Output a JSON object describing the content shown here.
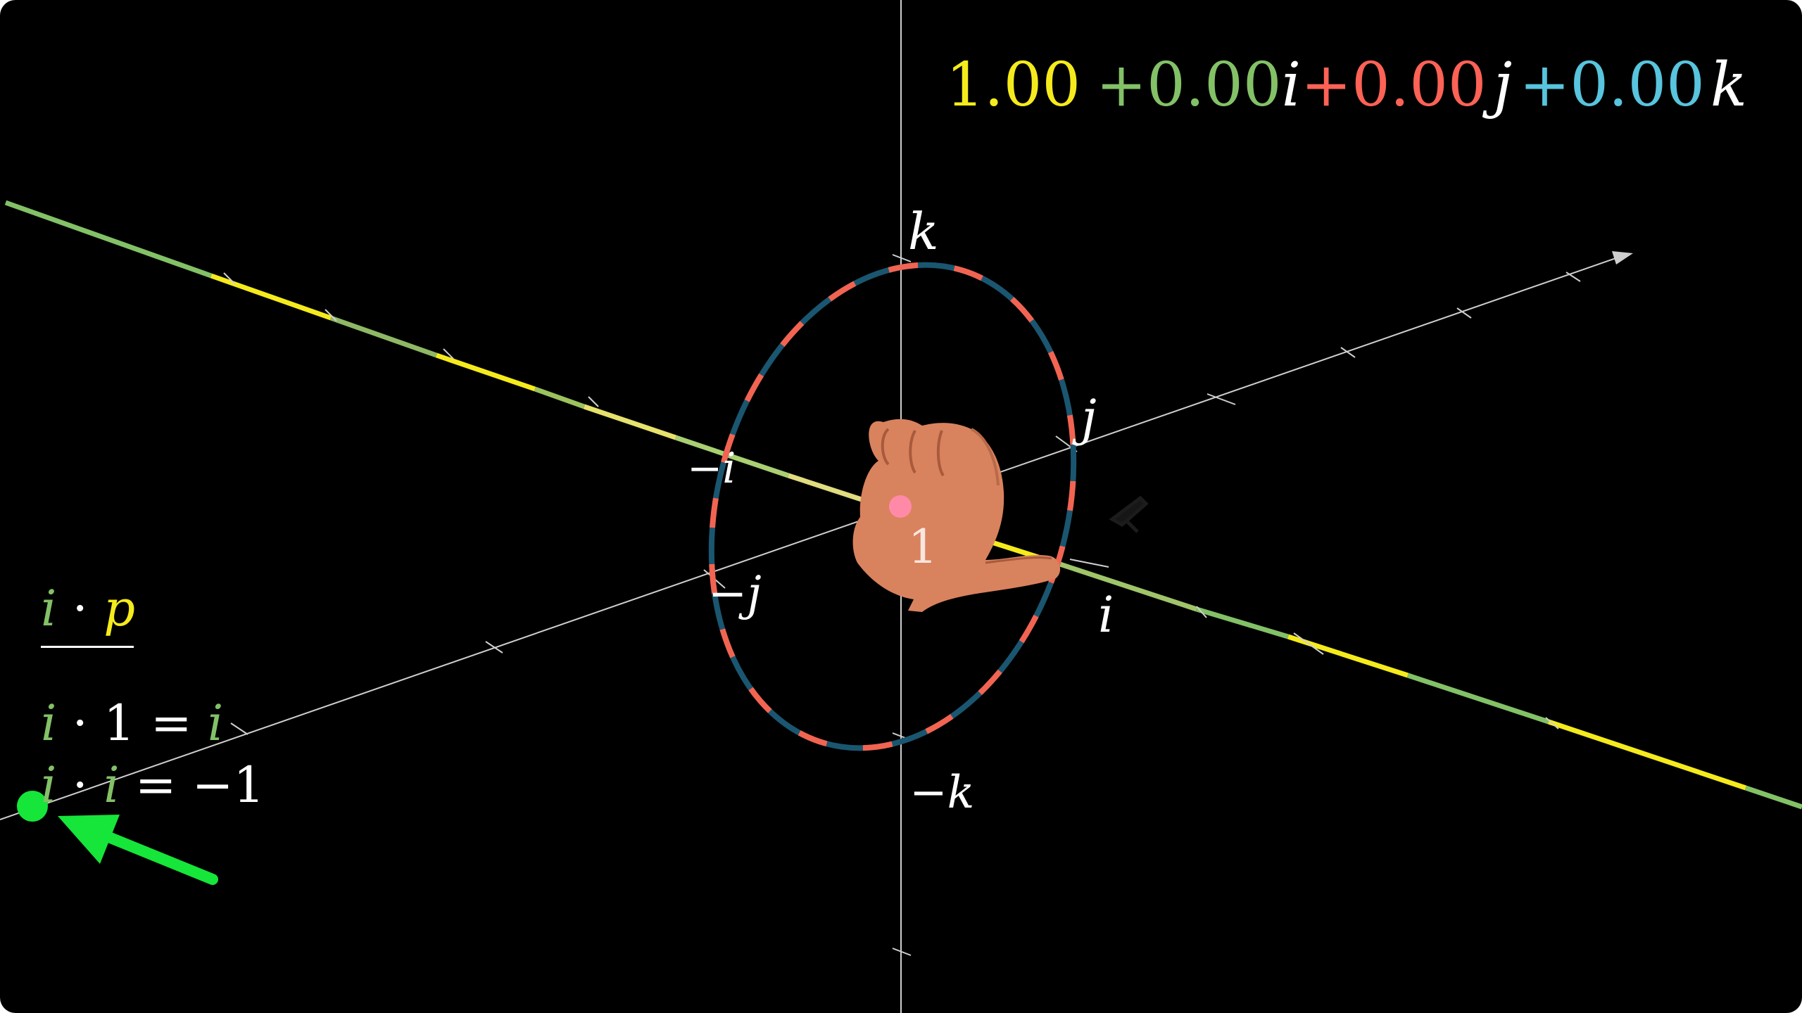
{
  "colors": {
    "background": "#000000",
    "axis": "#cfcfcf",
    "real_yellow": "#f5eb1c",
    "i_green": "#83c167",
    "j_red": "#fc6255",
    "k_blue": "#58c4dd",
    "circle_red": "#f26451",
    "circle_blue": "#1a5670",
    "point_pink": "#ff8aa8",
    "marker_green": "#16e53a",
    "white": "#ffffff"
  },
  "readout": {
    "real": "1.00",
    "i_coef": "+0.00",
    "i_unit": "i",
    "j_coef": "+0.00",
    "j_unit": "j",
    "k_coef": "+0.00",
    "k_unit": "k"
  },
  "axis_labels": {
    "k_pos": "k",
    "k_neg": "−k",
    "j_pos": "j",
    "j_neg": "−j",
    "i_pos": "i",
    "i_neg": "−i",
    "one": "1"
  },
  "equations": {
    "header_left": "i",
    "header_dot": "·",
    "header_right": "p",
    "eq1_left": "i",
    "eq1_rest": "· 1 = ",
    "eq1_right": "i",
    "eq2_left": "i",
    "eq2_dot": "·",
    "eq2_mid": "i",
    "eq2_rest": " = −1"
  },
  "icons": {
    "hand": "left-hand-thumb-icon",
    "arrow": "green-arrow-icon",
    "origin": "unit-point-icon"
  }
}
